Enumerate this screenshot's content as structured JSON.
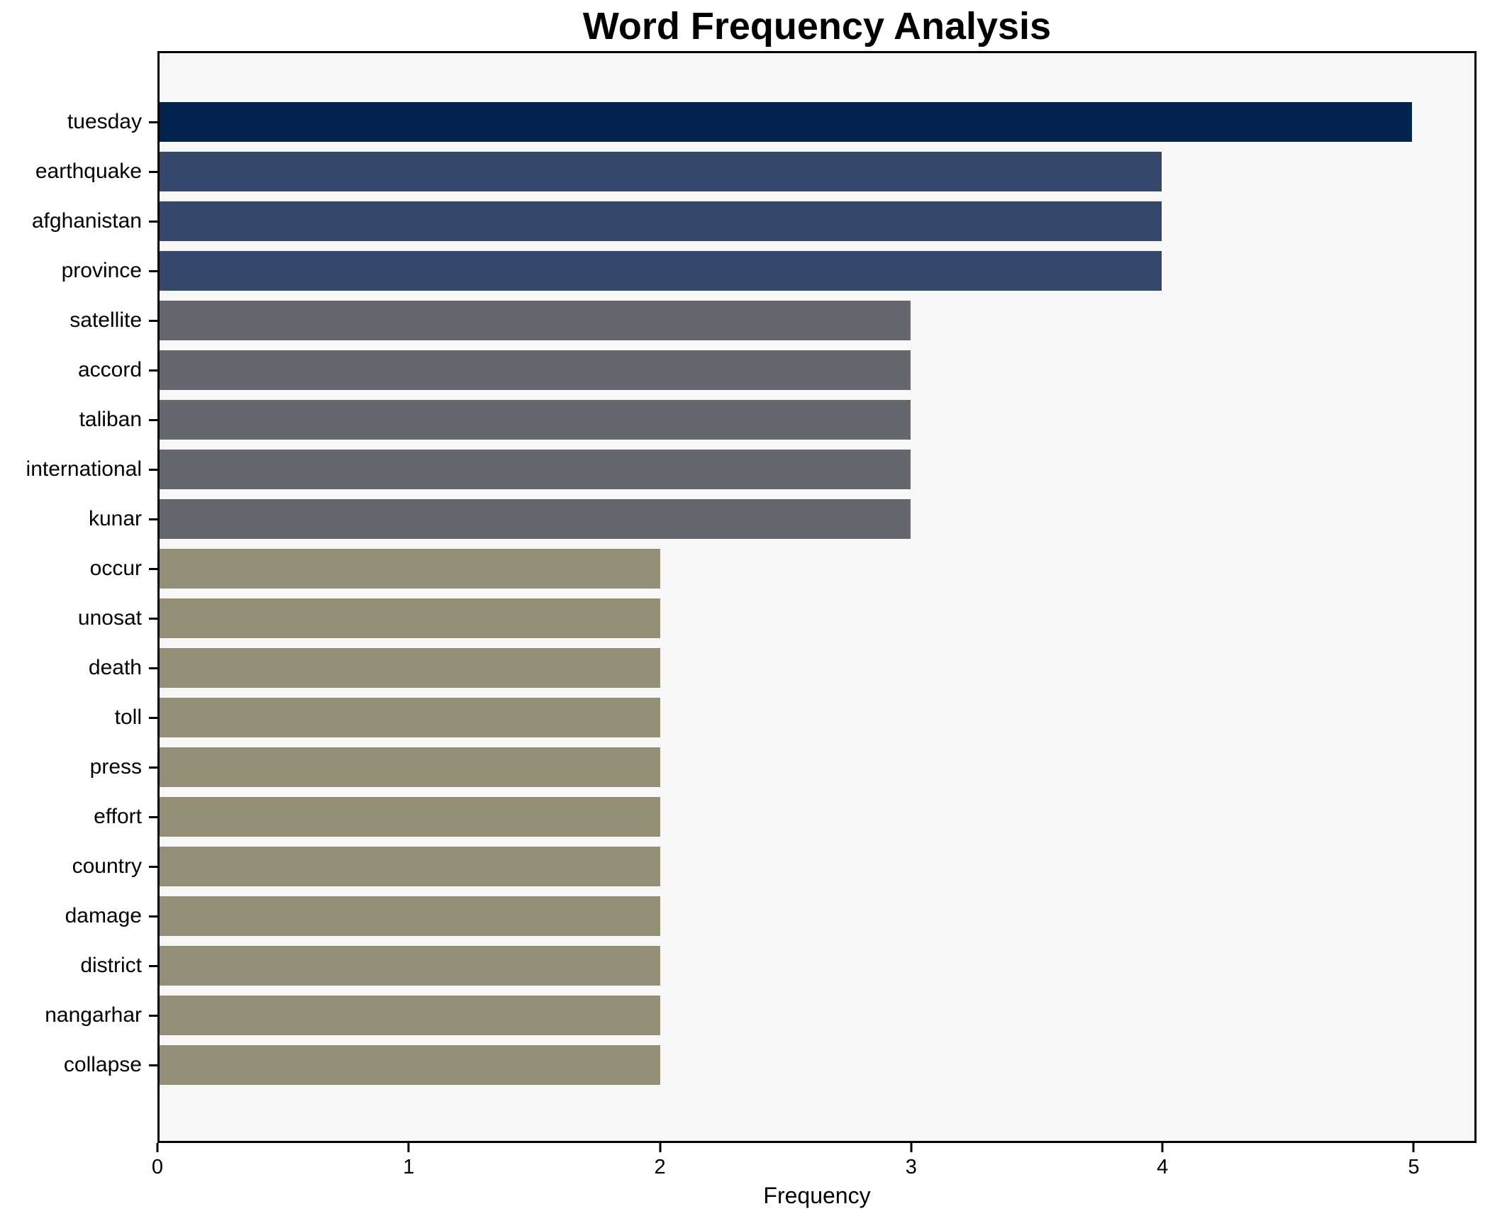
{
  "chart_data": {
    "type": "bar",
    "orientation": "horizontal",
    "title": "Word Frequency Analysis",
    "xlabel": "Frequency",
    "ylabel": "",
    "categories": [
      "tuesday",
      "earthquake",
      "afghanistan",
      "province",
      "satellite",
      "accord",
      "taliban",
      "international",
      "kunar",
      "occur",
      "unosat",
      "death",
      "toll",
      "press",
      "effort",
      "country",
      "damage",
      "district",
      "nangarhar",
      "collapse"
    ],
    "values": [
      5,
      4,
      4,
      4,
      3,
      3,
      3,
      3,
      3,
      2,
      2,
      2,
      2,
      2,
      2,
      2,
      2,
      2,
      2,
      2
    ],
    "colors": [
      "#02234d",
      "#36476c",
      "#36476c",
      "#36476c",
      "#65676f",
      "#65676f",
      "#65676f",
      "#65676f",
      "#65676f",
      "#948e77",
      "#948e77",
      "#948e77",
      "#948e77",
      "#948e77",
      "#948e77",
      "#948e77",
      "#948e77",
      "#948e77",
      "#948e77",
      "#948e77"
    ],
    "xlim": [
      0,
      5.25
    ],
    "xticks": [
      0,
      1,
      2,
      3,
      4,
      5
    ],
    "grid": false,
    "legend": null,
    "plot_background": "#f7f7f8",
    "figure_background": "#ffffff",
    "spine_color": "#000000"
  }
}
